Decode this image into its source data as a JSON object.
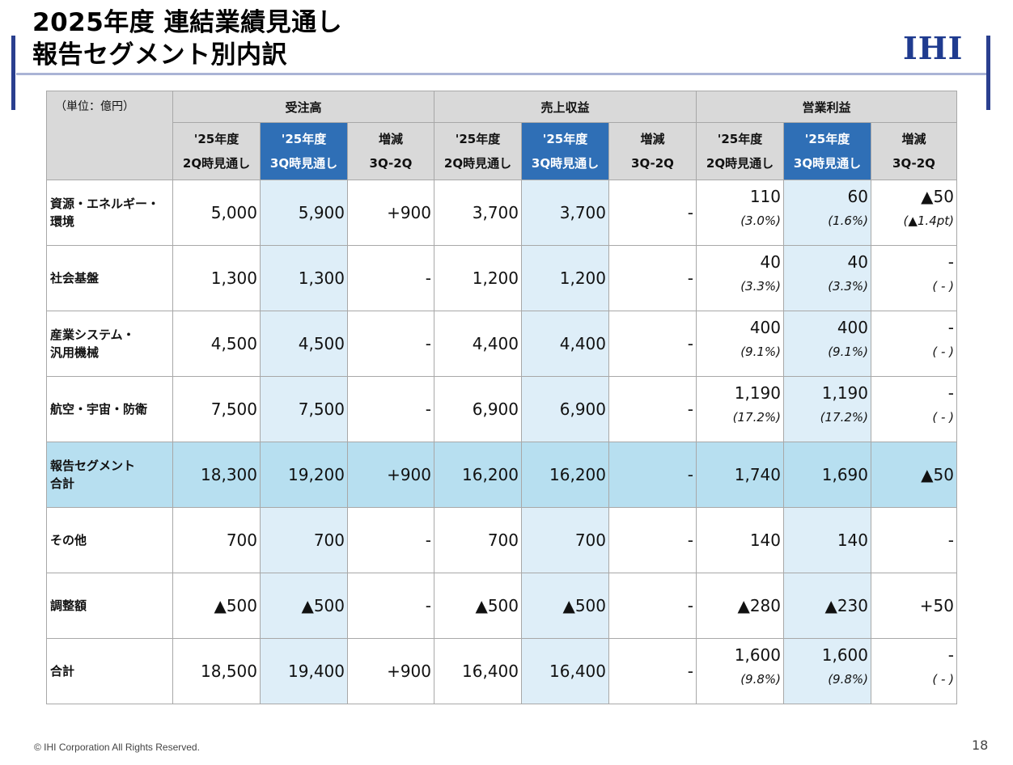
{
  "header": {
    "title_line1": "2025年度 連結業績見通し",
    "title_line2": "報告セグメント別内訳",
    "logo_text": "IHI"
  },
  "table": {
    "unit_label": "（単位：億円）",
    "groups": [
      "受注高",
      "売上収益",
      "営業利益"
    ],
    "sub_headers": [
      {
        "line1": "'25年度",
        "line2": "2Q時見通し"
      },
      {
        "line1": "'25年度",
        "line2": "3Q時見通し"
      },
      {
        "line1": "増減",
        "line2": "3Q-2Q"
      }
    ],
    "rows": [
      {
        "label": "資源・エネルギー・\n環境",
        "orders": [
          "5,000",
          "5,900",
          "+900"
        ],
        "revenue": [
          "3,700",
          "3,700",
          "-"
        ],
        "op": [
          "110",
          "60",
          "▲50"
        ],
        "op_pct": [
          "(3.0%)",
          "(1.6%)",
          "(▲1.4pt)"
        ]
      },
      {
        "label": "社会基盤",
        "orders": [
          "1,300",
          "1,300",
          "-"
        ],
        "revenue": [
          "1,200",
          "1,200",
          "-"
        ],
        "op": [
          "40",
          "40",
          "-"
        ],
        "op_pct": [
          "(3.3%)",
          "(3.3%)",
          "( - )"
        ]
      },
      {
        "label": "産業システム・\n汎用機械",
        "orders": [
          "4,500",
          "4,500",
          "-"
        ],
        "revenue": [
          "4,400",
          "4,400",
          "-"
        ],
        "op": [
          "400",
          "400",
          "-"
        ],
        "op_pct": [
          "(9.1%)",
          "(9.1%)",
          "( - )"
        ]
      },
      {
        "label": "航空・宇宙・防衛",
        "orders": [
          "7,500",
          "7,500",
          "-"
        ],
        "revenue": [
          "6,900",
          "6,900",
          "-"
        ],
        "op": [
          "1,190",
          "1,190",
          "-"
        ],
        "op_pct": [
          "(17.2%)",
          "(17.2%)",
          "( - )"
        ]
      },
      {
        "label": "報告セグメント\n合計",
        "orders": [
          "18,300",
          "19,200",
          "+900"
        ],
        "revenue": [
          "16,200",
          "16,200",
          "-"
        ],
        "op": [
          "1,740",
          "1,690",
          "▲50"
        ],
        "op_pct": null,
        "highlight": true
      },
      {
        "label": "その他",
        "orders": [
          "700",
          "700",
          "-"
        ],
        "revenue": [
          "700",
          "700",
          "-"
        ],
        "op": [
          "140",
          "140",
          "-"
        ],
        "op_pct": null
      },
      {
        "label": "調整額",
        "orders": [
          "▲500",
          "▲500",
          "-"
        ],
        "revenue": [
          "▲500",
          "▲500",
          "-"
        ],
        "op": [
          "▲280",
          "▲230",
          "+50"
        ],
        "op_pct": null
      },
      {
        "label": "合計",
        "orders": [
          "18,500",
          "19,400",
          "+900"
        ],
        "revenue": [
          "16,400",
          "16,400",
          "-"
        ],
        "op": [
          "1,600",
          "1,600",
          "-"
        ],
        "op_pct": [
          "(9.8%)",
          "(9.8%)",
          "( - )"
        ]
      }
    ]
  },
  "footer": {
    "copyright": "© IHI Corporation All Rights Reserved.",
    "page_number": "18"
  },
  "colors": {
    "brand_navy": "#1f3b8f",
    "header_gray": "#d9d9d9",
    "highlight_header_blue": "#2f6fb6",
    "highlight_column": "#deeef8",
    "total_row": "#b7dff0"
  }
}
